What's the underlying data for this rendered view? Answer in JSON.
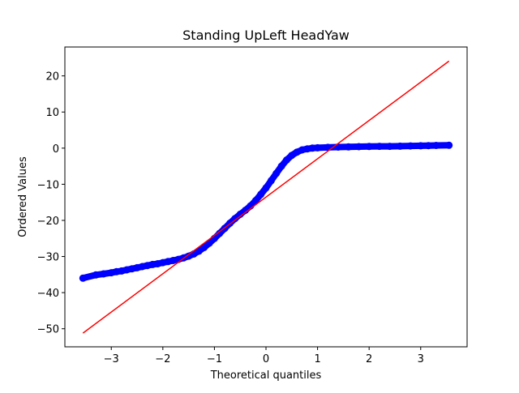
{
  "chart_data": {
    "type": "scatter",
    "title": "Standing UpLeft HeadYaw",
    "xlabel": "Theoretical quantiles",
    "ylabel": "Ordered Values",
    "xlim": [
      -3.9,
      3.9
    ],
    "ylim": [
      -55,
      28
    ],
    "xticks": [
      -3,
      -2,
      -1,
      0,
      1,
      2,
      3
    ],
    "xtick_labels": [
      "−3",
      "−2",
      "−1",
      "0",
      "1",
      "2",
      "3"
    ],
    "yticks": [
      -50,
      -40,
      -30,
      -20,
      -10,
      0,
      10,
      20
    ],
    "ytick_labels": [
      "−50",
      "−40",
      "−30",
      "−20",
      "−10",
      "0",
      "10",
      "20"
    ],
    "grid": false,
    "series": [
      {
        "kind": "points",
        "color": "#0000ff",
        "x": [
          -3.55,
          -3.3,
          -3.15,
          -3.0,
          -2.9,
          -2.8,
          -2.7,
          -2.6,
          -2.5,
          -2.4,
          -2.3,
          -2.2,
          -2.1,
          -2.0,
          -1.9,
          -1.8,
          -1.7,
          -1.6,
          -1.5,
          -1.4,
          -1.3,
          -1.2,
          -1.1,
          -1.0,
          -0.9,
          -0.8,
          -0.7,
          -0.6,
          -0.5,
          -0.4,
          -0.3,
          -0.2,
          -0.1,
          0.0,
          0.1,
          0.2,
          0.3,
          0.4,
          0.5,
          0.6,
          0.7,
          0.8,
          0.9,
          1.0,
          1.2,
          1.4,
          1.6,
          1.8,
          2.0,
          2.2,
          2.4,
          2.6,
          2.8,
          3.0,
          3.15,
          3.3,
          3.55
        ],
        "y": [
          -36.0,
          -35.1,
          -34.8,
          -34.5,
          -34.2,
          -34.0,
          -33.7,
          -33.4,
          -33.1,
          -32.8,
          -32.5,
          -32.2,
          -32.0,
          -31.7,
          -31.4,
          -31.1,
          -30.8,
          -30.4,
          -29.9,
          -29.3,
          -28.5,
          -27.5,
          -26.3,
          -25.0,
          -23.6,
          -22.2,
          -20.8,
          -19.5,
          -18.3,
          -17.2,
          -16.0,
          -14.5,
          -12.8,
          -11.0,
          -9.0,
          -7.0,
          -5.0,
          -3.3,
          -2.0,
          -1.1,
          -0.5,
          -0.2,
          0.0,
          0.1,
          0.2,
          0.3,
          0.35,
          0.4,
          0.45,
          0.5,
          0.5,
          0.55,
          0.6,
          0.65,
          0.7,
          0.75,
          0.8
        ]
      },
      {
        "kind": "line",
        "color": "#ff0000",
        "x": [
          -3.55,
          3.55
        ],
        "y": [
          -51.2,
          24.1
        ]
      }
    ]
  }
}
